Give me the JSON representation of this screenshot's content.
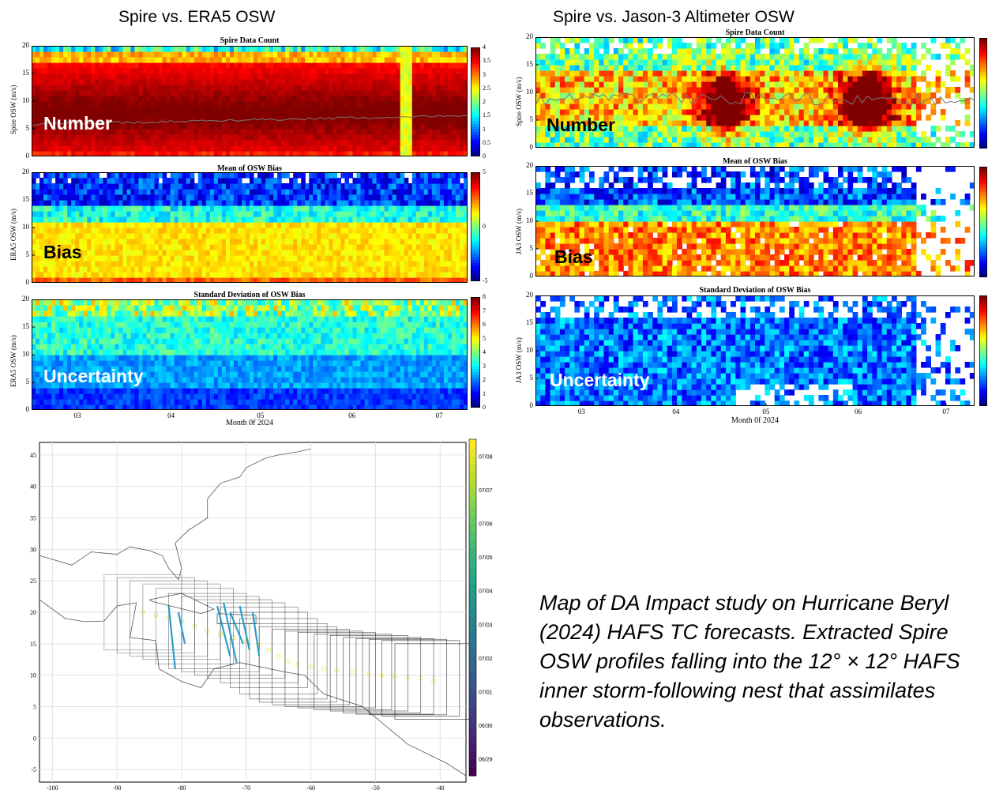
{
  "headers": {
    "left": "Spire vs. ERA5 OSW",
    "right": "Spire vs. Jason-3 Altimeter OSW"
  },
  "panels": {
    "count_title": "Spire Data Count",
    "bias_title": "Mean of OSW Bias",
    "std_title": "Standard Deviation of OSW Bias",
    "spire_ylabel": "Spire OSW (m/s)",
    "era5_ylabel": "ERA5 OSW (m/s)",
    "ja3_ylabel": "JA3 OSW (m/s)",
    "number_label": "Number",
    "bias_label": "Bias",
    "uncertainty_label": "Uncertainty",
    "xlabel": "Month 0f 2024"
  },
  "chart_data": [
    {
      "type": "heatmap",
      "title": "Spire Data Count",
      "panel": "left-top",
      "ylabel": "Spire OSW (m/s)",
      "ylim": [
        0,
        20
      ],
      "y_ticks": [
        "0",
        "5",
        "10",
        "15",
        "20"
      ],
      "colorbar_ticks": [
        "0",
        "0.5",
        "1",
        "1.5",
        "2",
        "2.5",
        "3",
        "3.5",
        "4"
      ],
      "colorbar_range": [
        0,
        4.2
      ],
      "colormap": "jet",
      "annotation": "Number"
    },
    {
      "type": "heatmap",
      "title": "Mean of OSW Bias",
      "panel": "left-middle",
      "ylabel": "ERA5 OSW (m/s)",
      "ylim": [
        0,
        20
      ],
      "y_ticks": [
        "0",
        "5",
        "10",
        "15",
        "20"
      ],
      "colorbar_ticks": [
        "-5",
        "0",
        "5"
      ],
      "colorbar_range": [
        -5,
        5
      ],
      "colormap": "jet",
      "annotation": "Bias"
    },
    {
      "type": "heatmap",
      "title": "Standard Deviation of OSW Bias",
      "panel": "left-bottom",
      "ylabel": "ERA5 OSW (m/s)",
      "ylim": [
        0,
        20
      ],
      "y_ticks": [
        "0",
        "5",
        "10",
        "15",
        "20"
      ],
      "x_ticks": [
        "03",
        "04",
        "05",
        "06",
        "07"
      ],
      "xlabel": "Month 0f 2024",
      "colorbar_ticks": [
        "0",
        "1",
        "2",
        "3",
        "4",
        "5",
        "6",
        "7",
        "8"
      ],
      "colorbar_range": [
        0,
        8
      ],
      "colormap": "jet",
      "annotation": "Uncertainty"
    },
    {
      "type": "heatmap",
      "title": "Spire Data Count",
      "panel": "right-top",
      "ylabel": "Spire OSW (m/s)",
      "ylim": [
        0,
        20
      ],
      "y_ticks": [
        "0",
        "5",
        "10",
        "15",
        "20"
      ],
      "colormap": "jet",
      "annotation": "Number"
    },
    {
      "type": "heatmap",
      "title": "Mean of OSW Bias",
      "panel": "right-middle",
      "ylabel": "JA3 OSW (m/s)",
      "ylim": [
        0,
        20
      ],
      "y_ticks": [
        "0",
        "5",
        "10",
        "15",
        "20"
      ],
      "colormap": "jet",
      "annotation": "Bias"
    },
    {
      "type": "heatmap",
      "title": "Standard Deviation of OSW Bias",
      "panel": "right-bottom",
      "ylabel": "JA3 OSW (m/s)",
      "ylim": [
        0,
        20
      ],
      "y_ticks": [
        "0",
        "5",
        "10",
        "15",
        "20"
      ],
      "x_ticks": [
        "03",
        "04",
        "05",
        "06",
        "07"
      ],
      "xlabel": "Month 0f 2024",
      "colormap": "jet",
      "annotation": "Uncertainty"
    },
    {
      "type": "scatter",
      "panel": "map",
      "xlim": [
        -102,
        -36
      ],
      "ylim": [
        -7,
        47
      ],
      "x_ticks": [
        "-100",
        "-90",
        "-80",
        "-70",
        "-60",
        "-50",
        "-40"
      ],
      "y_ticks": [
        "-5",
        "0",
        "5",
        "10",
        "15",
        "20",
        "25",
        "30",
        "35",
        "40",
        "45"
      ],
      "colorbar_ticks": [
        "06/29",
        "06/30",
        "07/01",
        "07/02",
        "07/03",
        "07/04",
        "07/05",
        "07/06",
        "07/07",
        "07/08"
      ],
      "colormap": "viridis",
      "track_centers": [
        {
          "lon": -41,
          "lat": 9
        },
        {
          "lon": -43,
          "lat": 9.5
        },
        {
          "lon": -45,
          "lat": 9.7
        },
        {
          "lon": -47,
          "lat": 9.8
        },
        {
          "lon": -49,
          "lat": 10
        },
        {
          "lon": -51,
          "lat": 10.3
        },
        {
          "lon": -53.5,
          "lat": 10.5
        },
        {
          "lon": -56,
          "lat": 10.8
        },
        {
          "lon": -58,
          "lat": 11
        },
        {
          "lon": -60,
          "lat": 11.3
        },
        {
          "lon": -62,
          "lat": 11.7
        },
        {
          "lon": -63.5,
          "lat": 12.2
        },
        {
          "lon": -65,
          "lat": 13
        },
        {
          "lon": -66.5,
          "lat": 14
        },
        {
          "lon": -68,
          "lat": 14.8
        },
        {
          "lon": -70,
          "lat": 15.5
        },
        {
          "lon": -72,
          "lat": 16
        },
        {
          "lon": -74,
          "lat": 16.5
        },
        {
          "lon": -76,
          "lat": 17
        },
        {
          "lon": -78,
          "lat": 17.8
        },
        {
          "lon": -80,
          "lat": 18.5
        },
        {
          "lon": -82,
          "lat": 19
        },
        {
          "lon": -84,
          "lat": 19.5
        },
        {
          "lon": -86,
          "lat": 20
        }
      ],
      "profiles": [
        {
          "lon1": -82,
          "lat1": 21,
          "lon2": -81,
          "lat2": 11
        },
        {
          "lon1": -80.5,
          "lat1": 20,
          "lon2": -79.5,
          "lat2": 15
        },
        {
          "lon1": -74.5,
          "lat1": 21,
          "lon2": -72.5,
          "lat2": 13
        },
        {
          "lon1": -73.5,
          "lat1": 21.5,
          "lon2": -71.5,
          "lat2": 12
        },
        {
          "lon1": -72.5,
          "lat1": 20,
          "lon2": -70.5,
          "lat2": 15
        },
        {
          "lon1": -71,
          "lat1": 21,
          "lon2": -69.5,
          "lat2": 14
        },
        {
          "lon1": -69,
          "lat1": 20,
          "lon2": -68,
          "lat2": 13
        }
      ]
    }
  ],
  "caption": "Map of DA Impact study on Hurricane Beryl (2024) HAFS TC forecasts. Extracted Spire OSW profiles falling into the 12° × 12° HAFS inner storm-following nest that assimilates observations."
}
